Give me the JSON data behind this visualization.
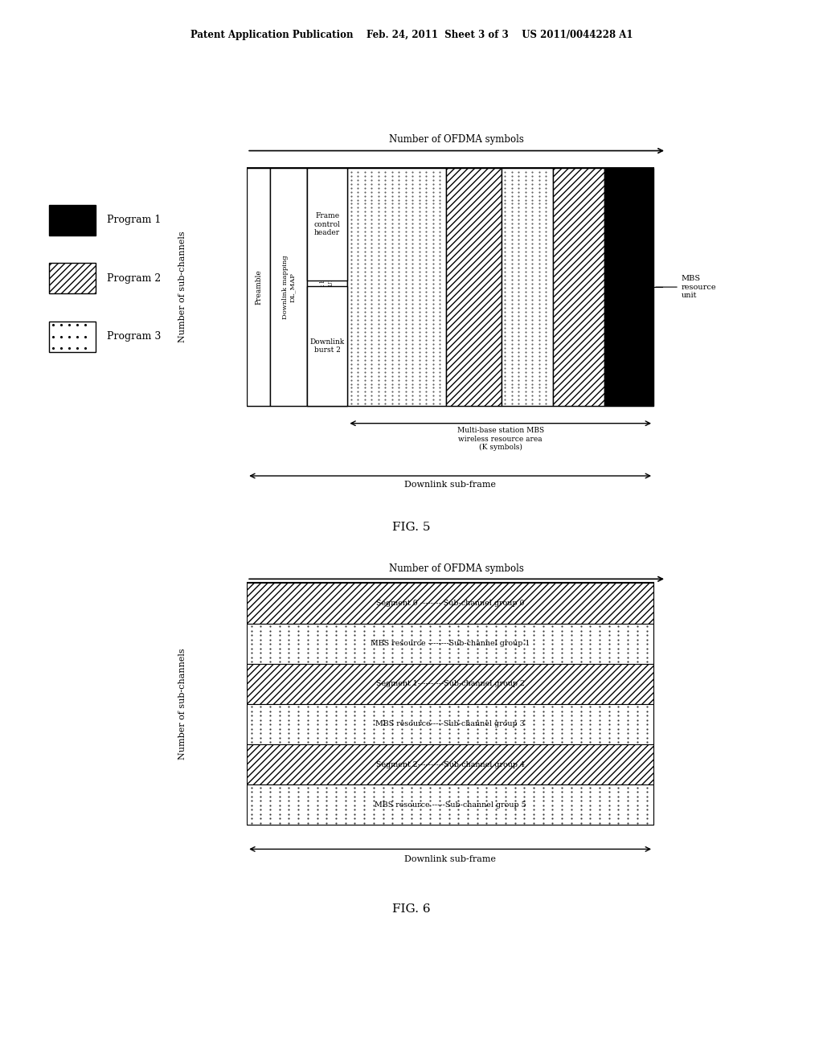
{
  "header_text": "Patent Application Publication    Feb. 24, 2011  Sheet 3 of 3    US 2011/0044228 A1",
  "fig5_title": "Number of OFDMA symbols",
  "fig5_ylabel": "Number of sub-channels",
  "fig5_label": "FIG. 5",
  "fig5_downlink_label": "Downlink sub-frame",
  "fig5_mbs_area_label": "Multi-base station MBS\nwireless resource area\n(K symbols)",
  "fig5_mbs_unit_label": "MBS\nresource\nunit",
  "fig5_legend": [
    "Program 1",
    "Program 2",
    "Program 3"
  ],
  "fig6_title": "Number of OFDMA symbols",
  "fig6_ylabel": "Number of sub-channels",
  "fig6_label": "FIG. 6",
  "fig6_downlink_label": "Downlink sub-frame",
  "fig6_rows": [
    "Segment 0 -------- Sub-channel group 0",
    "MBS resource --------Sub-channel group 1",
    "Segment 1----------Sub-channel group 2",
    "MBS resource-----Sub-channel group 3",
    "Segment 2----------Sub-channel group 4",
    "MBS resource -----Sub-channel group 5"
  ],
  "bg_color": "#ffffff"
}
